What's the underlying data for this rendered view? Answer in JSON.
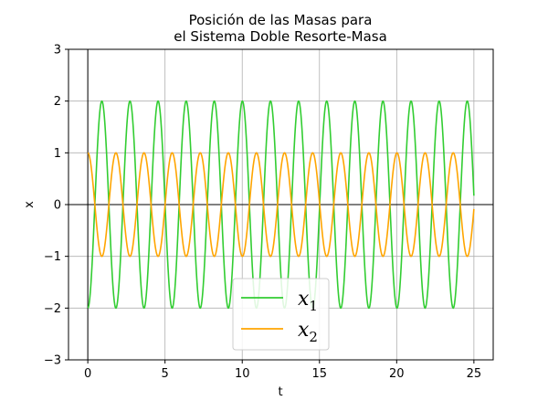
{
  "chart_data": {
    "type": "line",
    "title": [
      "Posición de las Masas para",
      "el Sistema Doble Resorte-Masa"
    ],
    "xlabel": "t",
    "ylabel": "x",
    "xlim": [
      -1.25,
      26.25
    ],
    "ylim": [
      -3,
      3
    ],
    "xticks": [
      0,
      5,
      10,
      15,
      20,
      25
    ],
    "yticks": [
      -3,
      -2,
      -1,
      0,
      1,
      2,
      3
    ],
    "xtick_labels": [
      "0",
      "5",
      "10",
      "15",
      "20",
      "25"
    ],
    "ytick_labels": [
      "−3",
      "−2",
      "−1",
      "0",
      "1",
      "2",
      "3"
    ],
    "grid": true,
    "zero_lines": true,
    "legend": {
      "placement": "lower-center"
    },
    "x_range": [
      0,
      25
    ],
    "series": [
      {
        "name": "x",
        "subscript": "1",
        "color": "#32cd32",
        "amplitude": 2,
        "period": 1.82,
        "phase_cos_sign": -1
      },
      {
        "name": "x",
        "subscript": "2",
        "color": "#ffa500",
        "amplitude": 1,
        "period": 1.82,
        "phase_cos_sign": 1
      }
    ]
  }
}
